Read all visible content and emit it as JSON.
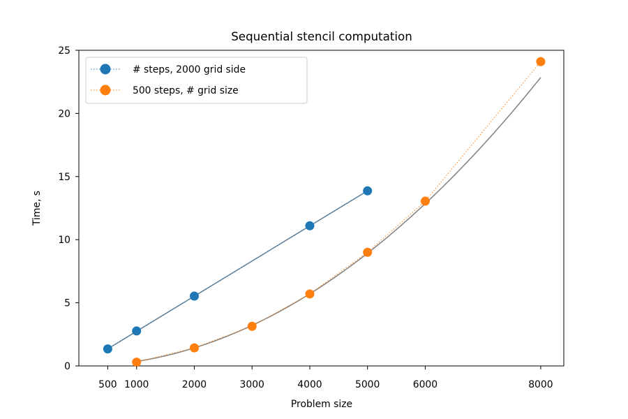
{
  "chart_data": {
    "type": "line",
    "title": "Sequential stencil computation",
    "xlabel": "Problem size",
    "ylabel": "Time, s",
    "xlim": [
      0,
      8400
    ],
    "ylim": [
      0,
      25
    ],
    "x_ticks": [
      500,
      1000,
      2000,
      3000,
      4000,
      5000,
      6000,
      8000
    ],
    "y_ticks": [
      0,
      5,
      10,
      15,
      20,
      25
    ],
    "grid": false,
    "legend_position": "top-left",
    "series": [
      {
        "name": "# steps, 2000 grid side",
        "color": "#1f77b4",
        "x": [
          500,
          1000,
          2000,
          4000,
          5000
        ],
        "y": [
          1.35,
          2.77,
          5.53,
          11.1,
          13.87
        ],
        "line_style": "dotted"
      },
      {
        "name": "500 steps, # grid size",
        "color": "#ff7f0e",
        "x": [
          1000,
          2000,
          3000,
          4000,
          5000,
          6000,
          8000
        ],
        "y": [
          0.3,
          1.43,
          3.14,
          5.7,
          9.0,
          13.05,
          24.1
        ],
        "line_style": "dotted"
      }
    ],
    "fit_lines": [
      {
        "color": "#708090",
        "kind": "linear",
        "x_range": [
          500,
          5000
        ],
        "points": [
          [
            500,
            1.35
          ],
          [
            5000,
            13.87
          ]
        ]
      },
      {
        "color": "#808080",
        "kind": "quadratic",
        "x_range": [
          1000,
          8000
        ],
        "coefficients": [
          3.57e-07,
          0,
          0
        ]
      }
    ]
  }
}
